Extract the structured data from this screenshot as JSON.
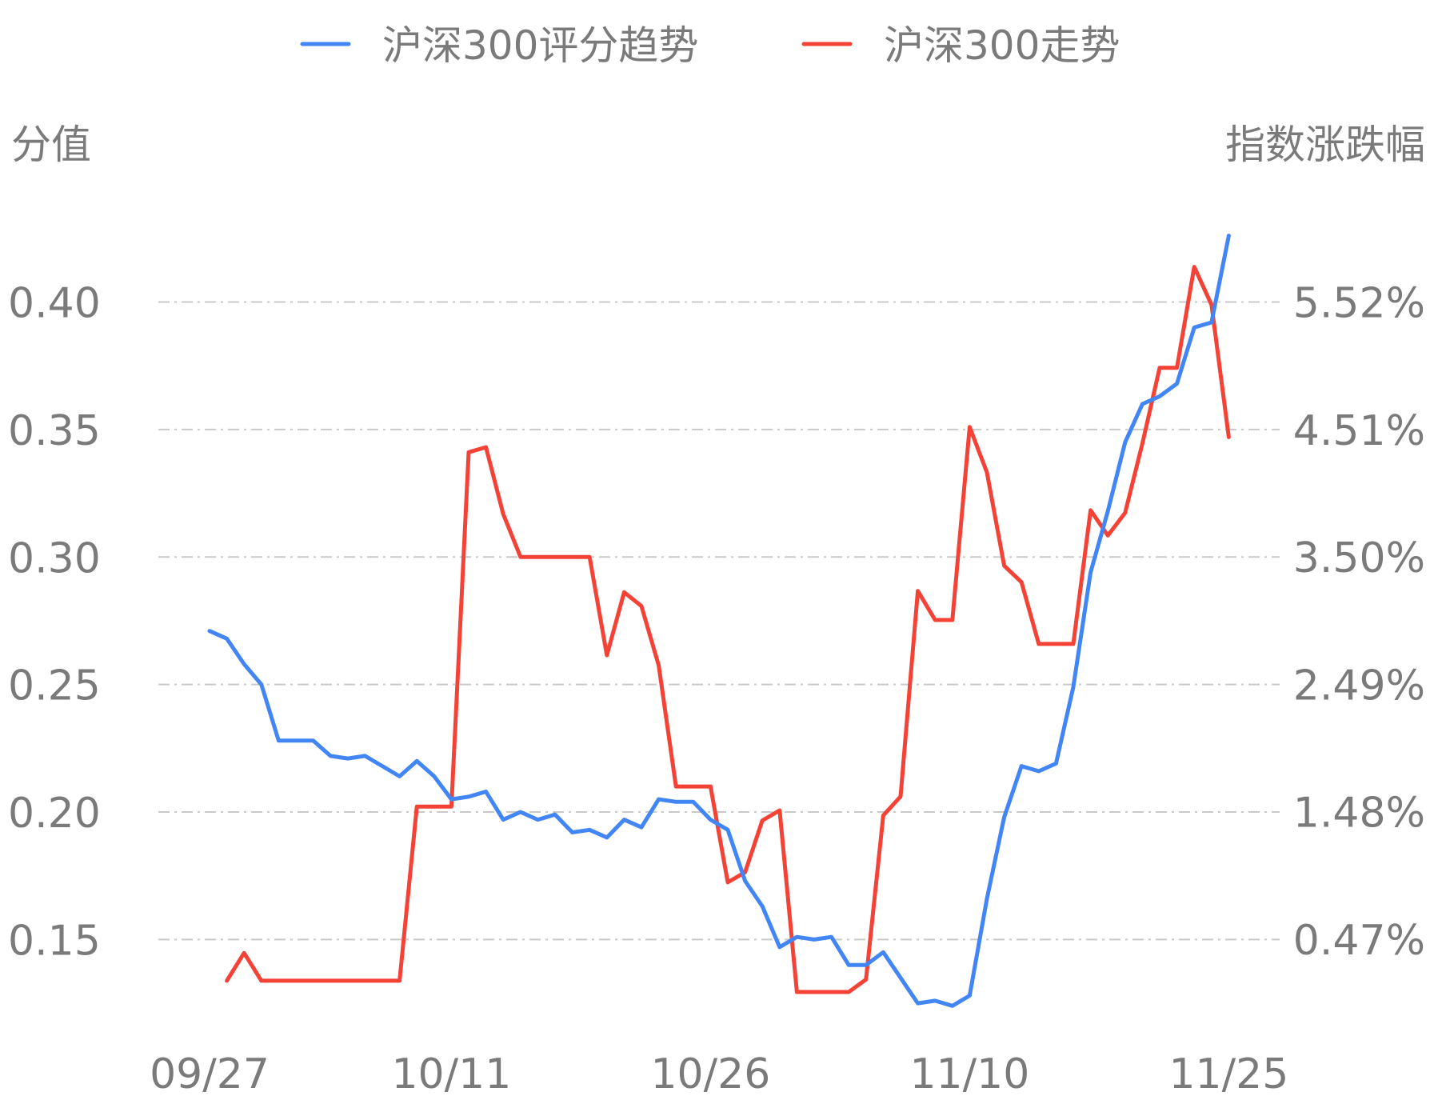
{
  "chart_data": {
    "type": "line",
    "title": "",
    "legend": {
      "placement": "top-center",
      "items": [
        {
          "label": "沪深300评分趋势",
          "color": "#4285f4"
        },
        {
          "label": "沪深300走势",
          "color": "#f44336"
        }
      ]
    },
    "left_axis": {
      "title": "分值",
      "range": [
        0.12,
        0.44
      ],
      "ticks": [
        "0.15",
        "0.20",
        "0.25",
        "0.30",
        "0.35",
        "0.40"
      ],
      "tick_values": [
        0.15,
        0.2,
        0.25,
        0.3,
        0.35,
        0.4
      ]
    },
    "right_axis": {
      "title": "指数涨跌幅",
      "range": [
        -0.14,
        6.33
      ],
      "ticks": [
        "0.47%",
        "1.48%",
        "2.49%",
        "3.50%",
        "4.51%",
        "5.52%"
      ],
      "tick_values": [
        0.47,
        1.48,
        2.49,
        3.5,
        4.51,
        5.52
      ]
    },
    "x_axis": {
      "tick_labels": [
        "09/27",
        "10/11",
        "10/26",
        "11/10",
        "11/25"
      ],
      "tick_index": [
        0,
        14,
        29,
        44,
        59
      ]
    },
    "grid": true,
    "series": [
      {
        "name": "沪深300评分趋势",
        "axis": "left",
        "color": "#4285f4",
        "values": [
          0.271,
          0.268,
          0.258,
          0.25,
          0.228,
          0.228,
          0.228,
          0.222,
          0.221,
          0.222,
          0.218,
          0.214,
          0.22,
          0.214,
          0.205,
          0.206,
          0.208,
          0.197,
          0.2,
          0.197,
          0.199,
          0.192,
          0.193,
          0.19,
          0.197,
          0.194,
          0.205,
          0.204,
          0.204,
          0.197,
          0.193,
          0.173,
          0.163,
          0.147,
          0.151,
          0.15,
          0.151,
          0.14,
          0.14,
          0.145,
          0.135,
          0.125,
          0.126,
          0.124,
          0.128,
          0.166,
          0.198,
          0.218,
          0.216,
          0.219,
          0.249,
          0.294,
          0.318,
          0.345,
          0.36,
          0.363,
          0.368,
          0.39,
          0.392,
          0.426
        ]
      },
      {
        "name": "沪深300走势",
        "axis": "right",
        "color": "#f44336",
        "values": [
          null,
          0.14,
          0.36,
          0.14,
          0.14,
          0.14,
          0.14,
          0.14,
          0.14,
          0.14,
          0.14,
          0.14,
          1.52,
          1.52,
          1.52,
          4.33,
          4.37,
          3.84,
          3.5,
          3.5,
          3.5,
          3.5,
          3.5,
          2.72,
          3.22,
          3.11,
          2.64,
          1.68,
          1.68,
          1.68,
          0.92,
          1.0,
          1.41,
          1.49,
          0.05,
          0.05,
          0.05,
          0.05,
          0.15,
          1.45,
          1.6,
          3.23,
          3.0,
          3.0,
          4.53,
          4.17,
          3.43,
          3.3,
          2.81,
          2.81,
          2.81,
          3.87,
          3.67,
          3.85,
          4.4,
          5.0,
          5.0,
          5.8,
          5.5,
          4.45
        ]
      }
    ]
  }
}
